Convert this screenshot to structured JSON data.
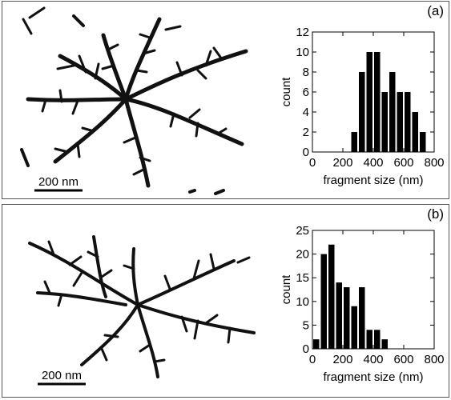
{
  "panels": [
    {
      "label": "(a)",
      "scale_bar": "200 nm"
    },
    {
      "label": "(b)",
      "scale_bar": "200 nm"
    }
  ],
  "chart_data": [
    {
      "type": "bar",
      "panel": "(a)",
      "xlabel": "fragment size (nm)",
      "ylabel": "count",
      "xlim": [
        0,
        800
      ],
      "ylim": [
        0,
        12
      ],
      "xticks": [
        0,
        200,
        400,
        600,
        800
      ],
      "yticks": [
        0,
        2,
        4,
        6,
        8,
        10,
        12
      ],
      "bin_width": 50,
      "x": [
        275,
        325,
        375,
        425,
        475,
        525,
        575,
        625,
        675,
        725
      ],
      "values": [
        2,
        8,
        10,
        10,
        6,
        8,
        6,
        6,
        4,
        2
      ]
    },
    {
      "type": "bar",
      "panel": "(b)",
      "xlabel": "fragment size (nm)",
      "ylabel": "count",
      "xlim": [
        0,
        800
      ],
      "ylim": [
        0,
        25
      ],
      "xticks": [
        0,
        200,
        400,
        600,
        800
      ],
      "yticks": [
        0,
        5,
        10,
        15,
        20,
        25
      ],
      "bin_width": 50,
      "x": [
        25,
        75,
        125,
        175,
        225,
        275,
        325,
        375,
        425,
        475
      ],
      "values": [
        2,
        20,
        22,
        14,
        13,
        9,
        13,
        4,
        4,
        2
      ]
    }
  ]
}
